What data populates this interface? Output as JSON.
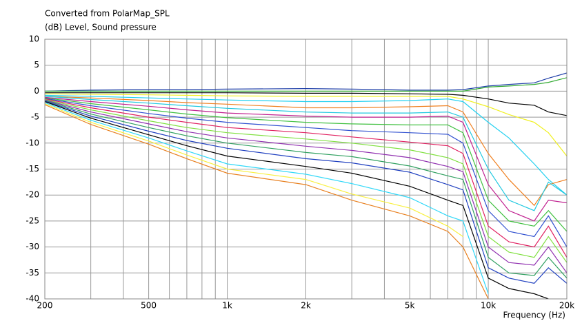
{
  "chart_data": {
    "type": "line",
    "title": "Converted from PolarMap_SPL",
    "y_label": "(dB)  Level, Sound pressure",
    "x_label": "Frequency  (Hz)",
    "xscale": "log",
    "grid": true,
    "xlim": [
      200,
      20000
    ],
    "ylim": [
      -40,
      10
    ],
    "yticks": [
      -40,
      -35,
      -30,
      -25,
      -20,
      -15,
      -10,
      -5,
      0,
      5,
      10
    ],
    "xticks": [
      200,
      500,
      {
        "value": 1000,
        "label": "1k"
      },
      {
        "value": 2000,
        "label": "2k"
      },
      {
        "value": 5000,
        "label": "5k"
      },
      {
        "value": 10000,
        "label": "10k"
      },
      {
        "value": 20000,
        "label": "20k"
      }
    ],
    "xminor": [
      300,
      400,
      600,
      700,
      800,
      900,
      3000,
      4000,
      6000,
      7000,
      8000,
      9000
    ],
    "x": [
      200,
      300,
      500,
      700,
      1000,
      2000,
      3000,
      5000,
      7000,
      8000,
      10000,
      12000,
      15000,
      17000,
      20000
    ],
    "series": [
      {
        "color": "#1f3fa8",
        "values": [
          0,
          0.2,
          0.3,
          0.3,
          0.4,
          0.5,
          0.4,
          0.2,
          0.2,
          0.3,
          1,
          1.3,
          1.6,
          2.5,
          3.5
        ]
      },
      {
        "color": "#33aa33",
        "values": [
          0,
          0,
          0,
          0,
          0,
          0,
          0,
          0,
          0,
          0,
          0.8,
          1,
          1.3,
          1.7,
          2.6
        ]
      },
      {
        "color": "#000000",
        "values": [
          -0.3,
          -0.3,
          -0.3,
          -0.3,
          -0.3,
          -0.4,
          -0.4,
          -0.5,
          -0.6,
          -0.8,
          -1.5,
          -2.3,
          -2.7,
          -4,
          -4.7
        ]
      },
      {
        "color": "#f0f020",
        "values": [
          -0.5,
          -0.6,
          -0.7,
          -0.8,
          -0.9,
          -1,
          -1,
          -1,
          -1,
          -1.5,
          -3,
          -4.5,
          -6,
          -8,
          -12.5
        ]
      },
      {
        "color": "#20d0f0",
        "values": [
          -0.8,
          -1,
          -1.3,
          -1.5,
          -1.7,
          -2,
          -2,
          -1.8,
          -1.5,
          -2,
          -6,
          -9,
          -14,
          -17,
          -20
        ]
      },
      {
        "color": "#f08020",
        "values": [
          -1,
          -1.3,
          -1.8,
          -2.2,
          -2.5,
          -3.2,
          -3.2,
          -3,
          -2.8,
          -4,
          -12,
          -17,
          -22,
          -18,
          -17
        ]
      },
      {
        "color": "#20c8e0",
        "values": [
          -1,
          -1.6,
          -2.3,
          -2.8,
          -3.3,
          -4,
          -4.2,
          -4.2,
          -4,
          -5,
          -15,
          -21,
          -23,
          -17.5,
          -20
        ]
      },
      {
        "color": "#c02090",
        "values": [
          -1.2,
          -2,
          -2.9,
          -3.6,
          -4.2,
          -4.8,
          -5,
          -5,
          -4.8,
          -6,
          -18,
          -23,
          -25,
          -21,
          -21.5
        ]
      },
      {
        "color": "#40c040",
        "values": [
          -1.3,
          -2.4,
          -3.6,
          -4.4,
          -5.1,
          -6,
          -6.3,
          -6.5,
          -6.5,
          -8,
          -21,
          -25,
          -26,
          -23,
          -27
        ]
      },
      {
        "color": "#3050d0",
        "values": [
          -1.4,
          -2.8,
          -4.3,
          -5.2,
          -6,
          -7,
          -7.6,
          -8,
          -8.3,
          -10,
          -23,
          -27,
          -28,
          -24,
          -30
        ]
      },
      {
        "color": "#e02060",
        "values": [
          -1.5,
          -3.2,
          -5,
          -6,
          -7,
          -8,
          -8.8,
          -9.8,
          -10.5,
          -12,
          -26,
          -29,
          -30,
          -26,
          -32
        ]
      },
      {
        "color": "#80e040",
        "values": [
          -1.6,
          -3.6,
          -5.7,
          -7,
          -8,
          -9.2,
          -10,
          -11.3,
          -12.8,
          -14,
          -28,
          -31,
          -32,
          -28,
          -33
        ]
      },
      {
        "color": "#9030b0",
        "values": [
          -1.7,
          -4,
          -6.3,
          -7.8,
          -9,
          -10.6,
          -11.4,
          -12.8,
          -14.5,
          -15.5,
          -30,
          -33,
          -33.5,
          -30,
          -35
        ]
      },
      {
        "color": "#30a060",
        "values": [
          -1.8,
          -4.4,
          -7,
          -8.6,
          -10,
          -11.8,
          -12.6,
          -14.4,
          -16.3,
          -17,
          -32,
          -35,
          -35.5,
          -32,
          -36
        ]
      },
      {
        "color": "#2040c0",
        "values": [
          -1.9,
          -4.8,
          -7.7,
          -9.5,
          -11,
          -13,
          -13.8,
          -15.6,
          -18,
          -19,
          -34,
          -36,
          -37,
          -34,
          -37
        ]
      },
      {
        "color": "#000000",
        "values": [
          -2,
          -5.2,
          -8.4,
          -10.5,
          -12.5,
          -14.5,
          -15.8,
          -18.3,
          -21,
          -22,
          -36,
          -38,
          -39,
          -40,
          null
        ]
      },
      {
        "color": "#30d8f8",
        "values": [
          -2.2,
          -5.6,
          -9,
          -11.5,
          -14,
          -16,
          -17.8,
          -20.5,
          -24,
          -25,
          -39,
          null,
          null,
          null,
          null
        ]
      },
      {
        "color": "#f8f040",
        "values": [
          -2.4,
          -6,
          -9.6,
          -12.3,
          -15,
          -17,
          -19.8,
          -22.5,
          -26,
          -28,
          null,
          null,
          null,
          null,
          null
        ]
      },
      {
        "color": "#e88020",
        "values": [
          -2.6,
          -6.4,
          -10.2,
          -13,
          -15.8,
          -18,
          -21,
          -24,
          -27,
          -30,
          -40,
          null,
          null,
          null,
          null
        ]
      }
    ]
  }
}
